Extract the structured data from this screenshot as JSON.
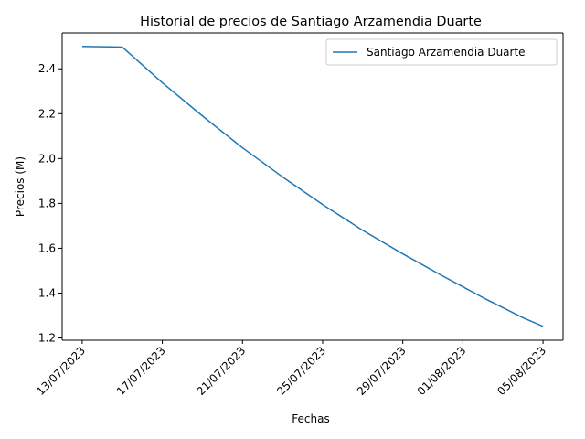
{
  "chart_data": {
    "type": "line",
    "title": "Historial de precios de Santiago Arzamendia Duarte",
    "xlabel": "Fechas",
    "ylabel": "Precios (M)",
    "x_ticks": [
      "13/07/2023",
      "17/07/2023",
      "21/07/2023",
      "25/07/2023",
      "29/07/2023",
      "01/08/2023",
      "05/08/2023"
    ],
    "y_ticks": [
      "1.2",
      "1.4",
      "1.6",
      "1.8",
      "2.0",
      "2.2",
      "2.4"
    ],
    "ylim": [
      1.19,
      2.56
    ],
    "xlim": [
      "12/07/2023",
      "06/08/2023"
    ],
    "legend_position": "top-right",
    "grid": false,
    "series": [
      {
        "name": "Santiago Arzamendia Duarte",
        "color": "#1f77b4",
        "x": [
          "13/07/2023",
          "15/07/2023",
          "17/07/2023",
          "19/07/2023",
          "21/07/2023",
          "23/07/2023",
          "25/07/2023",
          "27/07/2023",
          "29/07/2023",
          "31/07/2023",
          "02/08/2023",
          "04/08/2023",
          "05/08/2023"
        ],
        "y": [
          2.5,
          2.497,
          2.338,
          2.19,
          2.048,
          1.918,
          1.795,
          1.68,
          1.575,
          1.476,
          1.38,
          1.29,
          1.252
        ]
      }
    ]
  }
}
